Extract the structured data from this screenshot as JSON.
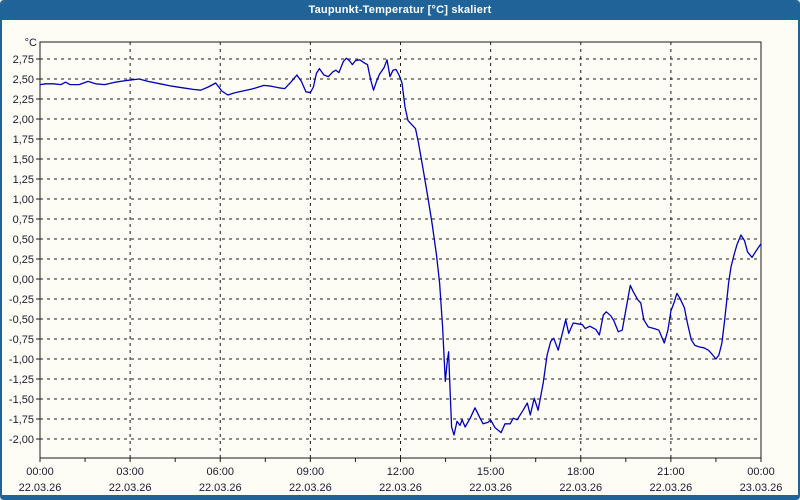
{
  "window": {
    "title": "Taupunkt-Temperatur [°C] skaliert",
    "title_bar_color": "#1f6399",
    "body_color": "#fdfdf6",
    "border_color": "#1f6399"
  },
  "chart_data": {
    "type": "line",
    "title": "Taupunkt-Temperatur [°C] skaliert",
    "ylabel": "°C",
    "xlabel": "",
    "grid": "dashed",
    "legend_position": "none",
    "series_name": "Taupunkt",
    "series_color": "#0000bd",
    "axis_color": "#1a1a1a",
    "text_color": "#1a1a2f",
    "ylim": [
      -2.2375,
      2.9625
    ],
    "xlim_hours": [
      0,
      24
    ],
    "y_tick_min": -2.0,
    "y_tick_max": 2.75,
    "y_tick_step": 0.25,
    "y_tick_decimal": "comma",
    "x_major_step_h": 3,
    "x_minor_step_h": 1.5,
    "x_tick_labels": [
      {
        "time": "00:00",
        "date": "22.03.26"
      },
      {
        "time": "03:00",
        "date": "22.03.26"
      },
      {
        "time": "06:00",
        "date": "22.03.26"
      },
      {
        "time": "09:00",
        "date": "22.03.26"
      },
      {
        "time": "12:00",
        "date": "22.03.26"
      },
      {
        "time": "15:00",
        "date": "22.03.26"
      },
      {
        "time": "18:00",
        "date": "22.03.26"
      },
      {
        "time": "21:00",
        "date": "22.03.26"
      },
      {
        "time": "00:00",
        "date": "23.03.26"
      }
    ],
    "points": [
      [
        0.0,
        2.43
      ],
      [
        0.2,
        2.44
      ],
      [
        0.45,
        2.44
      ],
      [
        0.7,
        2.43
      ],
      [
        0.85,
        2.46
      ],
      [
        1.0,
        2.43
      ],
      [
        1.3,
        2.43
      ],
      [
        1.6,
        2.47
      ],
      [
        1.85,
        2.44
      ],
      [
        2.15,
        2.43
      ],
      [
        2.5,
        2.46
      ],
      [
        2.85,
        2.48
      ],
      [
        3.3,
        2.5
      ],
      [
        3.6,
        2.47
      ],
      [
        4.0,
        2.44
      ],
      [
        4.4,
        2.41
      ],
      [
        4.75,
        2.39
      ],
      [
        5.1,
        2.37
      ],
      [
        5.35,
        2.36
      ],
      [
        5.6,
        2.4
      ],
      [
        5.85,
        2.45
      ],
      [
        6.05,
        2.35
      ],
      [
        6.25,
        2.3
      ],
      [
        6.5,
        2.33
      ],
      [
        6.75,
        2.35
      ],
      [
        7.0,
        2.37
      ],
      [
        7.2,
        2.39
      ],
      [
        7.45,
        2.42
      ],
      [
        7.7,
        2.41
      ],
      [
        7.95,
        2.39
      ],
      [
        8.15,
        2.38
      ],
      [
        8.35,
        2.46
      ],
      [
        8.55,
        2.55
      ],
      [
        8.7,
        2.47
      ],
      [
        8.85,
        2.34
      ],
      [
        9.0,
        2.33
      ],
      [
        9.1,
        2.4
      ],
      [
        9.2,
        2.57
      ],
      [
        9.3,
        2.63
      ],
      [
        9.45,
        2.55
      ],
      [
        9.6,
        2.53
      ],
      [
        9.75,
        2.59
      ],
      [
        9.85,
        2.61
      ],
      [
        9.95,
        2.58
      ],
      [
        10.1,
        2.72
      ],
      [
        10.2,
        2.76
      ],
      [
        10.3,
        2.73
      ],
      [
        10.4,
        2.68
      ],
      [
        10.5,
        2.73
      ],
      [
        10.65,
        2.74
      ],
      [
        10.8,
        2.7
      ],
      [
        10.9,
        2.68
      ],
      [
        11.0,
        2.5
      ],
      [
        11.1,
        2.36
      ],
      [
        11.2,
        2.47
      ],
      [
        11.3,
        2.56
      ],
      [
        11.45,
        2.64
      ],
      [
        11.55,
        2.74
      ],
      [
        11.65,
        2.53
      ],
      [
        11.75,
        2.61
      ],
      [
        11.85,
        2.62
      ],
      [
        11.95,
        2.55
      ],
      [
        12.05,
        2.45
      ],
      [
        12.15,
        2.15
      ],
      [
        12.25,
        1.98
      ],
      [
        12.35,
        1.94
      ],
      [
        12.5,
        1.88
      ],
      [
        12.6,
        1.7
      ],
      [
        12.75,
        1.38
      ],
      [
        12.9,
        1.05
      ],
      [
        13.05,
        0.7
      ],
      [
        13.2,
        0.3
      ],
      [
        13.3,
        -0.05
      ],
      [
        13.4,
        -0.6
      ],
      [
        13.49,
        -1.28
      ],
      [
        13.55,
        -1.05
      ],
      [
        13.6,
        -0.91
      ],
      [
        13.65,
        -1.4
      ],
      [
        13.7,
        -1.85
      ],
      [
        13.78,
        -1.95
      ],
      [
        13.88,
        -1.78
      ],
      [
        13.98,
        -1.83
      ],
      [
        14.05,
        -1.76
      ],
      [
        14.15,
        -1.85
      ],
      [
        14.32,
        -1.74
      ],
      [
        14.48,
        -1.61
      ],
      [
        14.65,
        -1.74
      ],
      [
        14.75,
        -1.81
      ],
      [
        14.92,
        -1.79
      ],
      [
        15.0,
        -1.76
      ],
      [
        15.15,
        -1.86
      ],
      [
        15.35,
        -1.92
      ],
      [
        15.48,
        -1.81
      ],
      [
        15.65,
        -1.81
      ],
      [
        15.75,
        -1.74
      ],
      [
        15.88,
        -1.76
      ],
      [
        16.08,
        -1.64
      ],
      [
        16.22,
        -1.55
      ],
      [
        16.32,
        -1.7
      ],
      [
        16.45,
        -1.49
      ],
      [
        16.58,
        -1.64
      ],
      [
        16.75,
        -1.3
      ],
      [
        16.88,
        -0.95
      ],
      [
        17.0,
        -0.78
      ],
      [
        17.1,
        -0.74
      ],
      [
        17.25,
        -0.89
      ],
      [
        17.4,
        -0.66
      ],
      [
        17.5,
        -0.51
      ],
      [
        17.6,
        -0.68
      ],
      [
        17.75,
        -0.55
      ],
      [
        17.9,
        -0.56
      ],
      [
        18.05,
        -0.57
      ],
      [
        18.15,
        -0.62
      ],
      [
        18.3,
        -0.59
      ],
      [
        18.5,
        -0.63
      ],
      [
        18.62,
        -0.7
      ],
      [
        18.75,
        -0.45
      ],
      [
        18.85,
        -0.41
      ],
      [
        19.0,
        -0.46
      ],
      [
        19.1,
        -0.52
      ],
      [
        19.25,
        -0.66
      ],
      [
        19.38,
        -0.64
      ],
      [
        19.5,
        -0.39
      ],
      [
        19.65,
        -0.08
      ],
      [
        19.75,
        -0.16
      ],
      [
        19.9,
        -0.26
      ],
      [
        20.0,
        -0.3
      ],
      [
        20.1,
        -0.51
      ],
      [
        20.25,
        -0.6
      ],
      [
        20.45,
        -0.62
      ],
      [
        20.6,
        -0.64
      ],
      [
        20.78,
        -0.8
      ],
      [
        20.9,
        -0.64
      ],
      [
        21.0,
        -0.4
      ],
      [
        21.1,
        -0.3
      ],
      [
        21.2,
        -0.18
      ],
      [
        21.3,
        -0.24
      ],
      [
        21.45,
        -0.36
      ],
      [
        21.55,
        -0.55
      ],
      [
        21.68,
        -0.76
      ],
      [
        21.8,
        -0.83
      ],
      [
        21.95,
        -0.85
      ],
      [
        22.1,
        -0.86
      ],
      [
        22.25,
        -0.89
      ],
      [
        22.35,
        -0.93
      ],
      [
        22.5,
        -1.0
      ],
      [
        22.6,
        -0.95
      ],
      [
        22.7,
        -0.8
      ],
      [
        22.78,
        -0.55
      ],
      [
        22.85,
        -0.3
      ],
      [
        22.92,
        -0.05
      ],
      [
        23.0,
        0.15
      ],
      [
        23.1,
        0.3
      ],
      [
        23.2,
        0.43
      ],
      [
        23.33,
        0.55
      ],
      [
        23.45,
        0.48
      ],
      [
        23.55,
        0.34
      ],
      [
        23.7,
        0.27
      ],
      [
        23.85,
        0.36
      ],
      [
        24.0,
        0.44
      ]
    ]
  }
}
